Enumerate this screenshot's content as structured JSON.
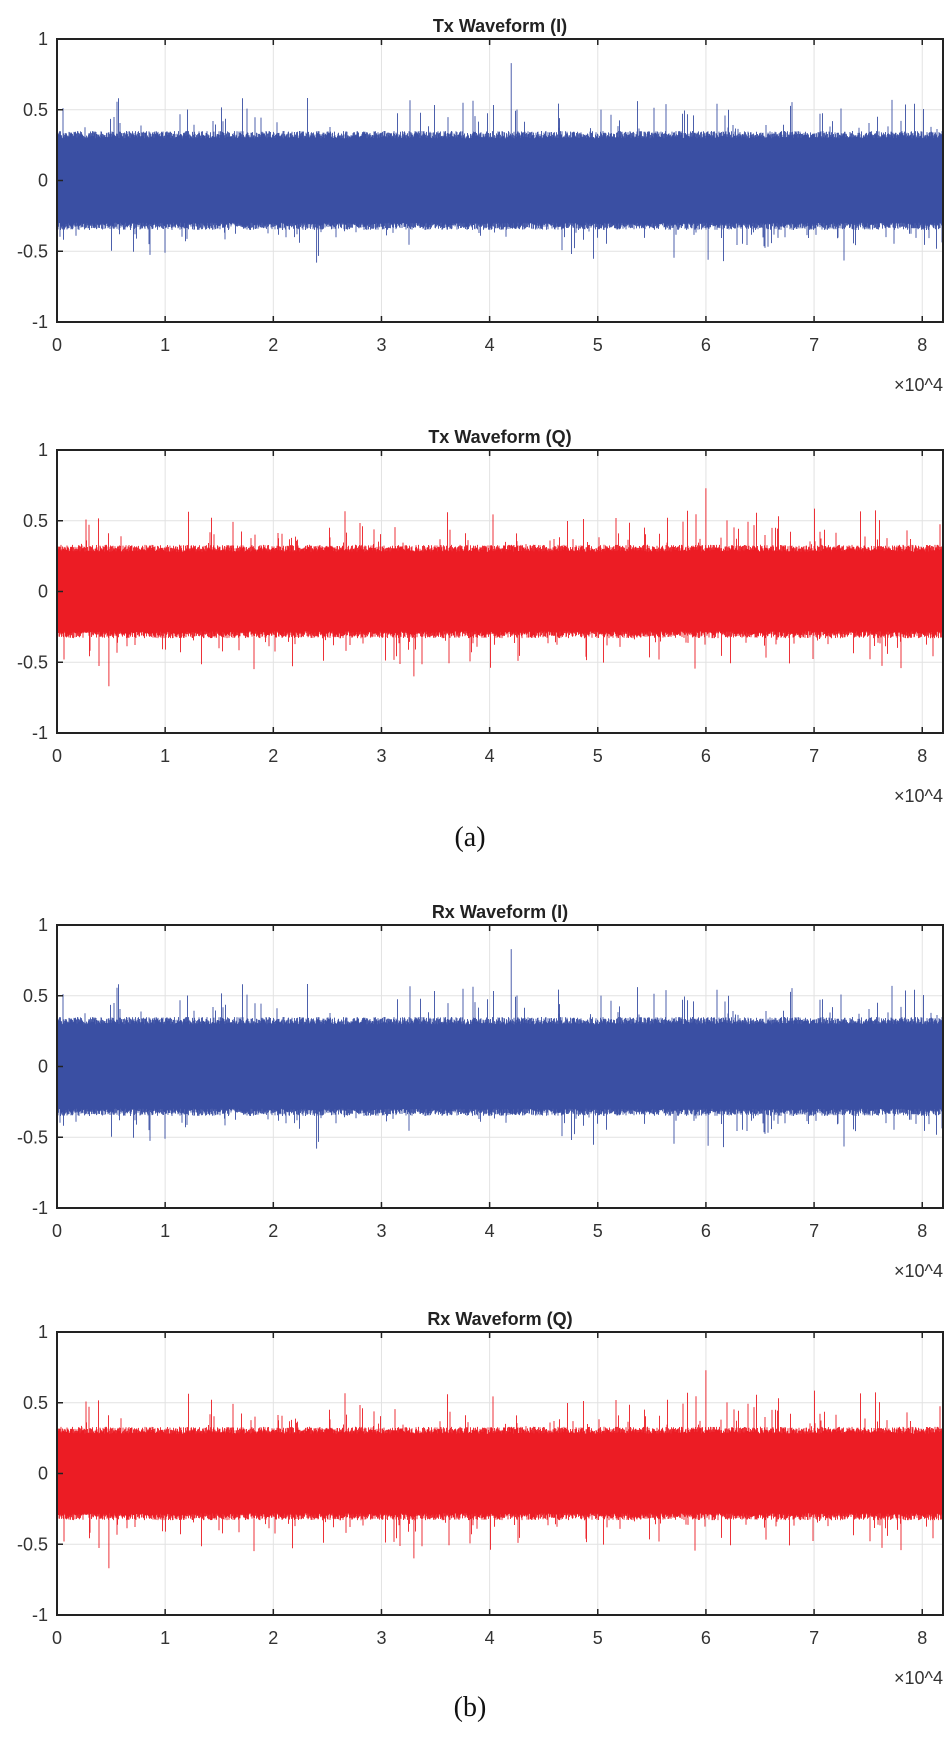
{
  "chart_data": [
    {
      "type": "line",
      "title": "Tx Waveform (I)",
      "xlim": [
        0,
        81920
      ],
      "ylim": [
        -1,
        1
      ],
      "xticks": [
        "0",
        "1",
        "2",
        "3",
        "4",
        "5",
        "6",
        "7",
        "8"
      ],
      "yticks": [
        "1",
        "0.5",
        "0",
        "-0.5",
        "-1"
      ],
      "x_exponent": "×10^4",
      "grid": true,
      "color": "#3a4fa3",
      "series": [
        {
          "samples": 81920,
          "envelope": [
            -0.35,
            0.35
          ],
          "max": 0.83,
          "min": -0.58
        }
      ]
    },
    {
      "type": "line",
      "title": "Tx Waveform (Q)",
      "xlim": [
        0,
        81920
      ],
      "ylim": [
        -1,
        1
      ],
      "xticks": [
        "0",
        "1",
        "2",
        "3",
        "4",
        "5",
        "6",
        "7",
        "8"
      ],
      "yticks": [
        "1",
        "0.5",
        "0",
        "-0.5",
        "-1"
      ],
      "x_exponent": "×10^4",
      "grid": true,
      "color": "#ec1c24",
      "series": [
        {
          "samples": 81920,
          "envelope": [
            -0.33,
            0.33
          ],
          "max": 0.73,
          "min": -0.67
        }
      ]
    },
    {
      "type": "line",
      "title": "Rx Waveform (I)",
      "xlim": [
        0,
        81920
      ],
      "ylim": [
        -1,
        1
      ],
      "xticks": [
        "0",
        "1",
        "2",
        "3",
        "4",
        "5",
        "6",
        "7",
        "8"
      ],
      "yticks": [
        "1",
        "0.5",
        "0",
        "-0.5",
        "-1"
      ],
      "x_exponent": "×10^4",
      "grid": true,
      "color": "#3a4fa3",
      "series": [
        {
          "samples": 81920,
          "envelope": [
            -0.35,
            0.35
          ],
          "max": 0.83,
          "min": -0.58
        }
      ]
    },
    {
      "type": "line",
      "title": "Rx Waveform (Q)",
      "xlim": [
        0,
        81920
      ],
      "ylim": [
        -1,
        1
      ],
      "xticks": [
        "0",
        "1",
        "2",
        "3",
        "4",
        "5",
        "6",
        "7",
        "8"
      ],
      "yticks": [
        "1",
        "0.5",
        "0",
        "-0.5",
        "-1"
      ],
      "x_exponent": "×10^4",
      "grid": true,
      "color": "#ec1c24",
      "series": [
        {
          "samples": 81920,
          "envelope": [
            -0.33,
            0.33
          ],
          "max": 0.73,
          "min": -0.67
        }
      ]
    }
  ],
  "captions": {
    "a": "(a)",
    "b": "(b)"
  }
}
